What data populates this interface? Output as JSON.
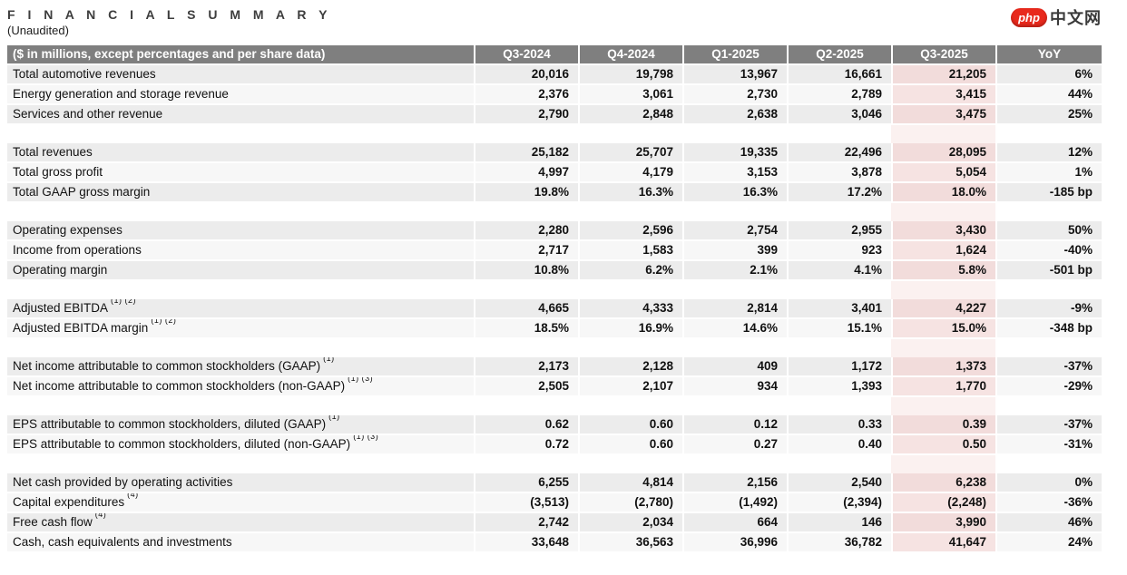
{
  "page": {
    "title": "F I N A N C I A L   S U M M A R Y",
    "subtitle": "(Unaudited)"
  },
  "logo": {
    "badge": "php",
    "text": "中文网"
  },
  "colors": {
    "header_gray": "#7f7f7f",
    "row_shade_a": "#ececec",
    "row_shade_b": "#f7f7f7",
    "highlight_pink": "#f2dcdb",
    "logo_red": "#e8291c"
  },
  "table": {
    "header": {
      "label": "($ in millions, except percentages and per share data)",
      "columns": [
        "Q3-2024",
        "Q4-2024",
        "Q1-2025",
        "Q2-2025",
        "Q3-2025",
        "YoY"
      ]
    },
    "highlight_column": "Q3-2025",
    "sections": [
      {
        "rows": [
          {
            "label": "Total automotive revenues",
            "sup": "",
            "values": [
              "20,016",
              "19,798",
              "13,967",
              "16,661",
              "21,205",
              "6%"
            ]
          },
          {
            "label": "Energy generation and storage revenue",
            "sup": "",
            "values": [
              "2,376",
              "3,061",
              "2,730",
              "2,789",
              "3,415",
              "44%"
            ]
          },
          {
            "label": "Services and other revenue",
            "sup": "",
            "values": [
              "2,790",
              "2,848",
              "2,638",
              "3,046",
              "3,475",
              "25%"
            ]
          }
        ]
      },
      {
        "rows": [
          {
            "label": "Total revenues",
            "sup": "",
            "values": [
              "25,182",
              "25,707",
              "19,335",
              "22,496",
              "28,095",
              "12%"
            ]
          },
          {
            "label": "Total gross profit",
            "sup": "",
            "values": [
              "4,997",
              "4,179",
              "3,153",
              "3,878",
              "5,054",
              "1%"
            ]
          },
          {
            "label": "Total GAAP gross margin",
            "sup": "",
            "values": [
              "19.8%",
              "16.3%",
              "16.3%",
              "17.2%",
              "18.0%",
              "-185 bp"
            ]
          }
        ]
      },
      {
        "rows": [
          {
            "label": "Operating expenses",
            "sup": "",
            "values": [
              "2,280",
              "2,596",
              "2,754",
              "2,955",
              "3,430",
              "50%"
            ]
          },
          {
            "label": "Income from operations",
            "sup": "",
            "values": [
              "2,717",
              "1,583",
              "399",
              "923",
              "1,624",
              "-40%"
            ]
          },
          {
            "label": "Operating margin",
            "sup": "",
            "values": [
              "10.8%",
              "6.2%",
              "2.1%",
              "4.1%",
              "5.8%",
              "-501 bp"
            ]
          }
        ]
      },
      {
        "rows": [
          {
            "label": "Adjusted EBITDA",
            "sup": "(1) (2)",
            "values": [
              "4,665",
              "4,333",
              "2,814",
              "3,401",
              "4,227",
              "-9%"
            ]
          },
          {
            "label": "Adjusted EBITDA margin",
            "sup": "(1) (2)",
            "values": [
              "18.5%",
              "16.9%",
              "14.6%",
              "15.1%",
              "15.0%",
              "-348 bp"
            ]
          }
        ]
      },
      {
        "rows": [
          {
            "label": "Net income attributable to common stockholders (GAAP)",
            "sup": "(1)",
            "values": [
              "2,173",
              "2,128",
              "409",
              "1,172",
              "1,373",
              "-37%"
            ]
          },
          {
            "label": "Net income attributable to common stockholders (non-GAAP)",
            "sup": "(1) (3)",
            "values": [
              "2,505",
              "2,107",
              "934",
              "1,393",
              "1,770",
              "-29%"
            ]
          }
        ]
      },
      {
        "rows": [
          {
            "label": "EPS attributable to common stockholders, diluted (GAAP)",
            "sup": "(1)",
            "values": [
              "0.62",
              "0.60",
              "0.12",
              "0.33",
              "0.39",
              "-37%"
            ]
          },
          {
            "label": "EPS attributable to common stockholders, diluted (non-GAAP)",
            "sup": "(1) (3)",
            "values": [
              "0.72",
              "0.60",
              "0.27",
              "0.40",
              "0.50",
              "-31%"
            ]
          }
        ]
      },
      {
        "rows": [
          {
            "label": "Net cash provided by operating activities",
            "sup": "",
            "values": [
              "6,255",
              "4,814",
              "2,156",
              "2,540",
              "6,238",
              "0%"
            ]
          },
          {
            "label": "Capital expenditures",
            "sup": "(4)",
            "values": [
              "(3,513)",
              "(2,780)",
              "(1,492)",
              "(2,394)",
              "(2,248)",
              "-36%"
            ]
          },
          {
            "label": "Free cash flow",
            "sup": "(4)",
            "values": [
              "2,742",
              "2,034",
              "664",
              "146",
              "3,990",
              "46%"
            ]
          },
          {
            "label": "Cash, cash equivalents and investments",
            "sup": "",
            "values": [
              "33,648",
              "36,563",
              "36,996",
              "36,782",
              "41,647",
              "24%"
            ]
          }
        ]
      }
    ]
  }
}
